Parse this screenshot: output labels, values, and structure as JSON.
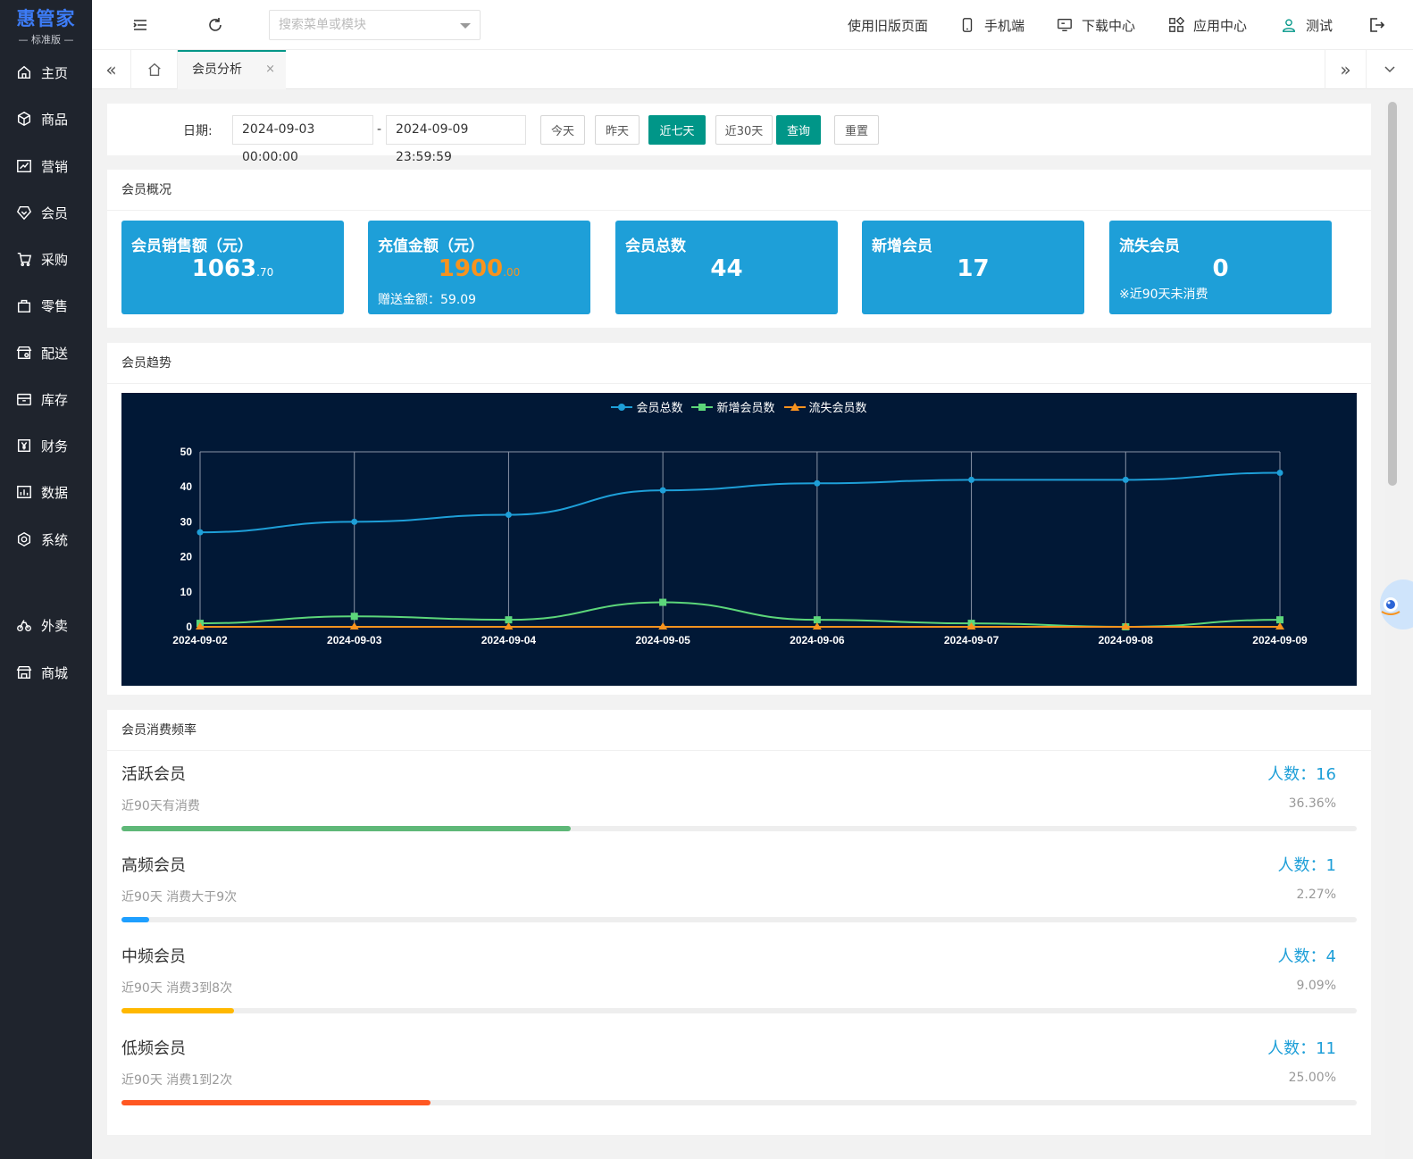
{
  "brand": {
    "name": "惠管家",
    "edition": "— 标准版 —"
  },
  "sidebar": {
    "items": [
      {
        "label": "主页",
        "icon": "home-icon"
      },
      {
        "label": "商品",
        "icon": "box-icon"
      },
      {
        "label": "营销",
        "icon": "trend-icon"
      },
      {
        "label": "会员",
        "icon": "diamond-icon"
      },
      {
        "label": "采购",
        "icon": "cart-icon"
      },
      {
        "label": "零售",
        "icon": "bag-icon"
      },
      {
        "label": "配送",
        "icon": "store-icon"
      },
      {
        "label": "库存",
        "icon": "storage-icon"
      },
      {
        "label": "财务",
        "icon": "yen-icon"
      },
      {
        "label": "数据",
        "icon": "chart-icon"
      },
      {
        "label": "系统",
        "icon": "settings-icon"
      },
      {
        "label": "外卖",
        "icon": "bike-icon"
      },
      {
        "label": "商城",
        "icon": "shop-icon"
      }
    ]
  },
  "topbar": {
    "search_placeholder": "搜索菜单或模块",
    "links": {
      "old_version": "使用旧版页面",
      "mobile": "手机端",
      "download": "下载中心",
      "apps": "应用中心",
      "user": "测试"
    }
  },
  "tabs": {
    "active_label": "会员分析",
    "close": "×"
  },
  "filter": {
    "label": "日期:",
    "start": "2024-09-03 00:00:00",
    "separator": "-",
    "end": "2024-09-09 23:59:59",
    "buttons": {
      "today": "今天",
      "yesterday": "昨天",
      "last7": "近七天",
      "last30": "近30天",
      "query": "查询",
      "reset": "重置"
    }
  },
  "overview": {
    "title": "会员概况",
    "stats": [
      {
        "title": "会员销售额（元）",
        "int": "1063",
        "dec": ".70",
        "note": ""
      },
      {
        "title": "充值金额（元）",
        "int": "1900",
        "dec": ".00",
        "note": "赠送金额：59.09"
      },
      {
        "title": "会员总数",
        "int": "44",
        "dec": "",
        "note": ""
      },
      {
        "title": "新增会员",
        "int": "17",
        "dec": "",
        "note": ""
      },
      {
        "title": "流失会员",
        "int": "0",
        "dec": "",
        "note": "※近90天未消费"
      }
    ],
    "colors": {
      "box": "#1e9fd8",
      "highlight_value": "#f7931e"
    }
  },
  "trend": {
    "title": "会员趋势"
  },
  "chart_data": {
    "type": "line",
    "x": [
      "2024-09-02",
      "2024-09-03",
      "2024-09-04",
      "2024-09-05",
      "2024-09-06",
      "2024-09-07",
      "2024-09-08",
      "2024-09-09"
    ],
    "ylim": [
      0,
      50
    ],
    "yticks": [
      0,
      10,
      20,
      30,
      40,
      50
    ],
    "grid": "vertical",
    "legend_position": "top-center",
    "background": "#011836",
    "series": [
      {
        "name": "会员总数",
        "color": "#1e9fd8",
        "marker": "circle",
        "values": [
          27,
          30,
          32,
          39,
          41,
          42,
          42,
          44
        ]
      },
      {
        "name": "新增会员数",
        "color": "#5cd67a",
        "marker": "square",
        "values": [
          1,
          3,
          2,
          7,
          2,
          1,
          0,
          2
        ]
      },
      {
        "name": "流失会员数",
        "color": "#f7931e",
        "marker": "triangle",
        "values": [
          0,
          0,
          0,
          0,
          0,
          0,
          0,
          0
        ]
      }
    ]
  },
  "frequency": {
    "title": "会员消费频率",
    "count_prefix": "人数：",
    "rows": [
      {
        "name": "活跃会员",
        "count": "人数：16",
        "desc": "近90天有消费",
        "pct": "36.36%",
        "value": 0.3636,
        "color": "#5fb878"
      },
      {
        "name": "高频会员",
        "count": "人数：1",
        "desc": "近90天 消费大于9次",
        "pct": "2.27%",
        "value": 0.0227,
        "color": "#1e9fff"
      },
      {
        "name": "中频会员",
        "count": "人数：4",
        "desc": "近90天 消费3到8次",
        "pct": "9.09%",
        "value": 0.0909,
        "color": "#ffb800"
      },
      {
        "name": "低频会员",
        "count": "人数：11",
        "desc": "近90天 消费1到2次",
        "pct": "25.00%",
        "value": 0.25,
        "color": "#ff5722"
      }
    ]
  }
}
